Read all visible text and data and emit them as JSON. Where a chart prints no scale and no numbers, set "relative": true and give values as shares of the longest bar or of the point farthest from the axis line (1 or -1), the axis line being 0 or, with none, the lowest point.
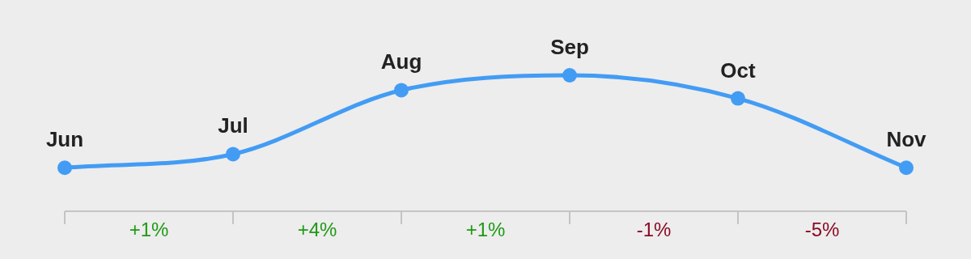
{
  "chart_data": {
    "type": "line",
    "relative": true,
    "categories": [
      "Jun",
      "Jul",
      "Aug",
      "Sep",
      "Oct",
      "Nov"
    ],
    "color": "#439cf4",
    "values": [
      0.32,
      0.42,
      0.89,
      1,
      0.83,
      0.32
    ],
    "marker": "circle",
    "line_style": "solid",
    "legend": false,
    "annotations": [
      "+1%",
      "+4%",
      "+1%",
      "-1%",
      "-5%"
    ]
  }
}
